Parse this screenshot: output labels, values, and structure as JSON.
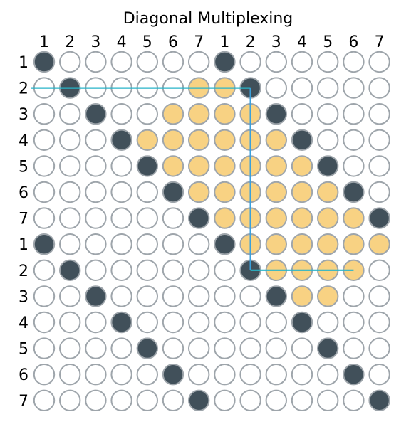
{
  "title": "Diagonal Multiplexing",
  "column_labels": [
    "1",
    "2",
    "3",
    "4",
    "5",
    "6",
    "7",
    "1",
    "2",
    "3",
    "4",
    "5",
    "6",
    "7"
  ],
  "row_labels": [
    "1",
    "2",
    "3",
    "4",
    "5",
    "6",
    "7",
    "1",
    "2",
    "3",
    "4",
    "5",
    "6",
    "7"
  ],
  "colors": {
    "empty_fill": "#ffffff",
    "dark_fill": "#41505a",
    "highlight_fill": "#f8d283",
    "circle_stroke": "#9ea5ab",
    "horizontal_line": "#28b4c8",
    "vertical_line": "#3aa0dc"
  },
  "grid": {
    "legend": "0 = empty, 1 = dark (diagonal), 2 = highlighted",
    "cells": [
      [
        1,
        0,
        0,
        0,
        0,
        0,
        0,
        1,
        0,
        0,
        0,
        0,
        0,
        0
      ],
      [
        0,
        1,
        0,
        0,
        0,
        0,
        2,
        2,
        1,
        0,
        0,
        0,
        0,
        0
      ],
      [
        0,
        0,
        1,
        0,
        0,
        2,
        2,
        2,
        2,
        1,
        0,
        0,
        0,
        0
      ],
      [
        0,
        0,
        0,
        1,
        2,
        2,
        2,
        2,
        2,
        2,
        1,
        0,
        0,
        0
      ],
      [
        0,
        0,
        0,
        0,
        1,
        2,
        2,
        2,
        2,
        2,
        2,
        1,
        0,
        0
      ],
      [
        0,
        0,
        0,
        0,
        0,
        1,
        2,
        2,
        2,
        2,
        2,
        2,
        1,
        0
      ],
      [
        0,
        0,
        0,
        0,
        0,
        0,
        1,
        2,
        2,
        2,
        2,
        2,
        2,
        1
      ],
      [
        1,
        0,
        0,
        0,
        0,
        0,
        0,
        1,
        2,
        2,
        2,
        2,
        2,
        2
      ],
      [
        0,
        1,
        0,
        0,
        0,
        0,
        0,
        0,
        1,
        2,
        2,
        2,
        2,
        0
      ],
      [
        0,
        0,
        1,
        0,
        0,
        0,
        0,
        0,
        0,
        1,
        2,
        2,
        0,
        0
      ],
      [
        0,
        0,
        0,
        1,
        0,
        0,
        0,
        0,
        0,
        0,
        1,
        0,
        0,
        0
      ],
      [
        0,
        0,
        0,
        0,
        1,
        0,
        0,
        0,
        0,
        0,
        0,
        1,
        0,
        0
      ],
      [
        0,
        0,
        0,
        0,
        0,
        1,
        0,
        0,
        0,
        0,
        0,
        0,
        1,
        0
      ],
      [
        0,
        0,
        0,
        0,
        0,
        0,
        1,
        0,
        0,
        0,
        0,
        0,
        0,
        1
      ]
    ]
  }
}
